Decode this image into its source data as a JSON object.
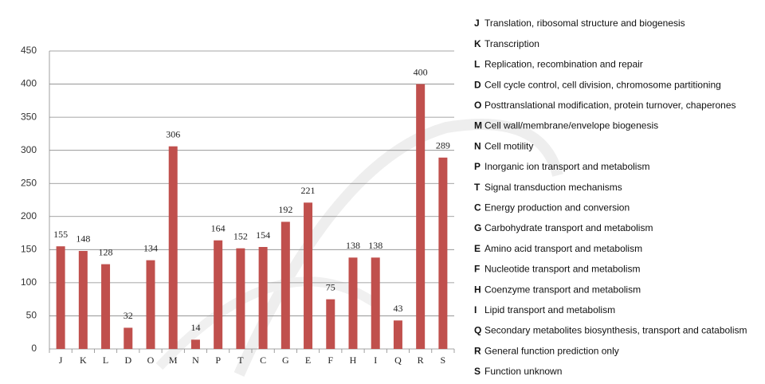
{
  "chart_data": {
    "type": "bar",
    "categories": [
      "J",
      "K",
      "L",
      "D",
      "O",
      "M",
      "N",
      "P",
      "T",
      "C",
      "G",
      "E",
      "F",
      "H",
      "I",
      "Q",
      "R",
      "S"
    ],
    "values": [
      155,
      148,
      128,
      32,
      134,
      306,
      14,
      164,
      152,
      154,
      192,
      221,
      75,
      138,
      138,
      43,
      400,
      289
    ],
    "category_descriptions": [
      "Translation, ribosomal structure and biogenesis",
      "Transcription",
      "Replication, recombination and repair",
      "Cell cycle control, cell division, chromosome partitioning",
      "Posttranslational modification, protein turnover, chaperones",
      "Cell wall/membrane/envelope biogenesis",
      "Cell motility",
      "Inorganic ion transport and metabolism",
      "Signal transduction mechanisms",
      "Energy production and conversion",
      "Carbohydrate transport and metabolism",
      "Amino acid transport and metabolism",
      "Nucleotide transport and metabolism",
      "Coenzyme transport and metabolism",
      "Lipid transport and metabolism",
      "Secondary metabolites biosynthesis, transport and catabolism",
      "General function prediction only",
      "Function unknown"
    ],
    "color": "#c0504d",
    "ylim": [
      0,
      450
    ],
    "yticks": [
      0,
      50,
      100,
      150,
      200,
      250,
      300,
      350,
      400,
      450
    ],
    "grid": true
  }
}
